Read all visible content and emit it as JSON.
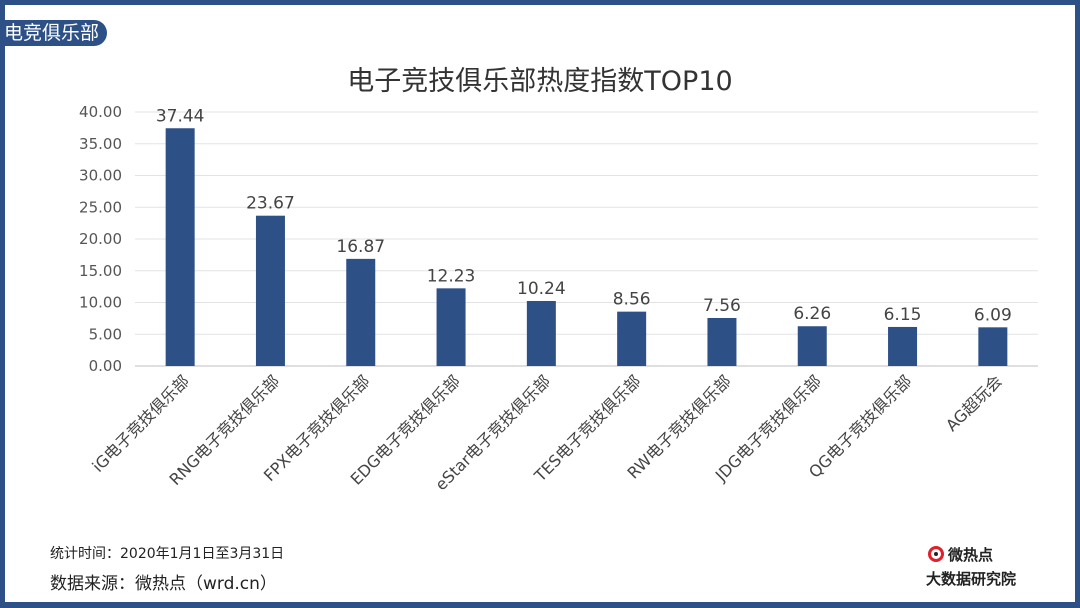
{
  "header": {
    "tag": "电竞俱乐部"
  },
  "chart_data": {
    "type": "bar",
    "title": "电子竞技俱乐部热度指数TOP10",
    "categories": [
      "iG电子竞技俱乐部",
      "RNG电子竞技俱乐部",
      "FPX电子竞技俱乐部",
      "EDG电子竞技俱乐部",
      "eStar电子竞技俱乐部",
      "TES电子竞技俱乐部",
      "RW电子竞技俱乐部",
      "JDG电子竞技俱乐部",
      "QG电子竞技俱乐部",
      "AG超玩会"
    ],
    "values": [
      37.44,
      23.67,
      16.87,
      12.23,
      10.24,
      8.56,
      7.56,
      6.26,
      6.15,
      6.09
    ],
    "ylim": [
      0,
      40
    ],
    "yticks": [
      "0.00",
      "5.00",
      "10.00",
      "15.00",
      "20.00",
      "25.00",
      "30.00",
      "35.00",
      "40.00"
    ],
    "grid": true,
    "bar_color": "#2d5087"
  },
  "footer": {
    "period": "统计时间：2020年1月1日至3月31日",
    "source": "数据来源：微热点（wrd.cn）"
  },
  "logo": {
    "line1": "微热点",
    "line2": "大数据研究院"
  },
  "colors": {
    "frame": "#2d5087"
  }
}
